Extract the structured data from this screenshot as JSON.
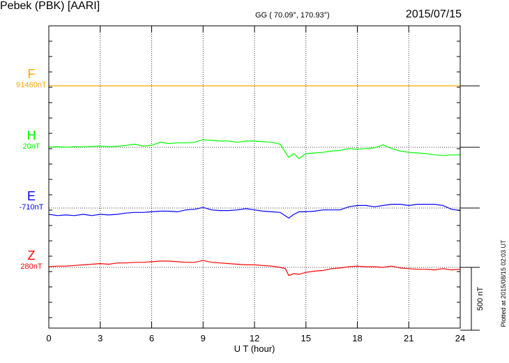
{
  "header": {
    "station": "Pebek (PBK)  [AARI]",
    "coords": "GG ( 70.09°, 170.93°)",
    "date": "2015/07/15"
  },
  "footer": {
    "plotted": "Plotted at 2015/08/15 02:03 UT"
  },
  "chart_data": {
    "type": "line",
    "xlabel": "U T (hour)",
    "xlim": [
      0,
      24
    ],
    "xticks": [
      0,
      3,
      6,
      9,
      12,
      15,
      18,
      21,
      24
    ],
    "x_tick_labels": [
      "0",
      "3",
      "6",
      "9",
      "12",
      "15",
      "18",
      "21",
      "24"
    ],
    "scale_bar_label": "500 nT",
    "scale_bar_nT": 500,
    "grid": true,
    "series": [
      {
        "name": "F",
        "baseline_label": "91460nT",
        "baseline_nT": 91460,
        "color": "#ffa500",
        "x": [
          0,
          24
        ],
        "y": [
          91460,
          91460
        ]
      },
      {
        "name": "H",
        "baseline_label": "20nT",
        "baseline_nT": 20,
        "color": "#00ff00",
        "x": [
          0,
          0.5,
          1,
          1.5,
          2,
          2.5,
          3,
          3.5,
          4,
          4.5,
          5,
          5.5,
          6,
          6.5,
          7,
          7.5,
          8,
          8.5,
          9,
          9.5,
          10,
          10.5,
          11,
          11.5,
          12,
          12.5,
          13,
          13.5,
          13.8,
          14,
          14.3,
          14.6,
          15,
          15.5,
          16,
          16.5,
          17,
          17.5,
          18,
          18.5,
          19,
          19.5,
          20,
          20.5,
          21,
          21.5,
          22,
          22.5,
          23,
          23.5,
          24
        ],
        "y": [
          20,
          25,
          20,
          25,
          23,
          27,
          30,
          25,
          28,
          35,
          45,
          30,
          35,
          60,
          50,
          55,
          55,
          60,
          80,
          75,
          70,
          70,
          60,
          70,
          70,
          65,
          60,
          45,
          -20,
          -60,
          -30,
          -70,
          -30,
          -25,
          -20,
          -10,
          -5,
          10,
          5,
          10,
          15,
          40,
          10,
          -10,
          -20,
          -25,
          -30,
          -40,
          -45,
          -40,
          -40
        ]
      },
      {
        "name": "E",
        "baseline_label": "-710nT",
        "baseline_nT": -710,
        "color": "#0000ff",
        "x": [
          0,
          0.5,
          1,
          1.5,
          2,
          2.5,
          3,
          3.5,
          4,
          4.5,
          5,
          5.5,
          6,
          6.5,
          7,
          7.5,
          8,
          8.5,
          9,
          9.5,
          10,
          10.5,
          11,
          11.5,
          12,
          12.5,
          13,
          13.5,
          14,
          14.3,
          14.6,
          15,
          15.5,
          16,
          16.5,
          17,
          17.5,
          18,
          18.5,
          19,
          19.5,
          20,
          20.5,
          21,
          21.5,
          22,
          22.5,
          23,
          23.5,
          24
        ],
        "y": [
          -760,
          -770,
          -765,
          -770,
          -760,
          -770,
          -760,
          -765,
          -760,
          -750,
          -745,
          -745,
          -740,
          -735,
          -735,
          -740,
          -725,
          -720,
          -705,
          -725,
          -730,
          -730,
          -725,
          -715,
          -725,
          -735,
          -740,
          -745,
          -790,
          -760,
          -740,
          -740,
          -735,
          -725,
          -725,
          -725,
          -700,
          -690,
          -690,
          -700,
          -690,
          -680,
          -680,
          -690,
          -680,
          -680,
          -680,
          -690,
          -720,
          -730
        ]
      },
      {
        "name": "Z",
        "baseline_label": "280nT",
        "baseline_nT": 280,
        "color": "#ff0000",
        "x": [
          0,
          0.5,
          1,
          1.5,
          2,
          2.5,
          3,
          3.5,
          4,
          4.5,
          5,
          5.5,
          6,
          6.5,
          7,
          7.5,
          8,
          8.5,
          9,
          9.5,
          10,
          10.5,
          11,
          11.5,
          12,
          12.5,
          13,
          13.5,
          13.8,
          14,
          14.3,
          14.6,
          15,
          15.5,
          16,
          16.5,
          17,
          17.5,
          18,
          18.5,
          19,
          19.5,
          20,
          20.5,
          21,
          21.5,
          22,
          22.5,
          23,
          23.5,
          24
        ],
        "y": [
          285,
          290,
          290,
          295,
          300,
          305,
          310,
          305,
          315,
          315,
          320,
          320,
          325,
          330,
          330,
          325,
          320,
          320,
          335,
          320,
          315,
          310,
          305,
          300,
          300,
          295,
          290,
          280,
          270,
          215,
          230,
          225,
          240,
          250,
          255,
          270,
          275,
          285,
          290,
          285,
          285,
          280,
          290,
          275,
          270,
          265,
          265,
          260,
          270,
          260,
          265
        ]
      }
    ]
  }
}
